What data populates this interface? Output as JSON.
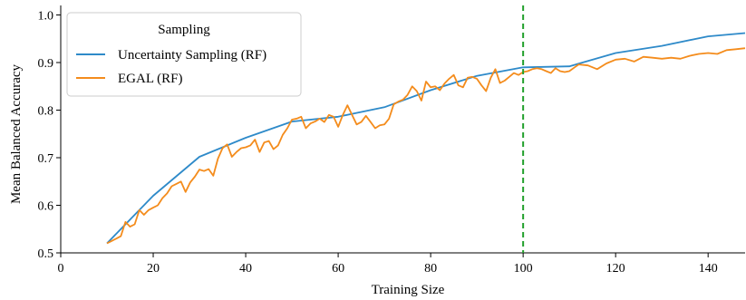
{
  "chart_data": {
    "type": "line",
    "xlabel": "Training Size",
    "ylabel": "Mean Balanced Accuracy",
    "xlim": [
      0,
      148
    ],
    "ylim": [
      0.5,
      1.02
    ],
    "xticks": [
      0,
      20,
      40,
      60,
      80,
      100,
      120,
      140
    ],
    "yticks": [
      0.5,
      0.6,
      0.7,
      0.8,
      0.9,
      1.0
    ],
    "xtick_labels": [
      "0",
      "20",
      "40",
      "60",
      "80",
      "100",
      "120",
      "140"
    ],
    "ytick_labels": [
      "0.5",
      "0.6",
      "0.7",
      "0.8",
      "0.9",
      "1.0"
    ],
    "grid": false,
    "legend": {
      "title": "Sampling",
      "placement": "top-left"
    },
    "vline": {
      "x": 100,
      "color": "#22a02c",
      "style": "dashed"
    },
    "series": [
      {
        "name": "Uncertainty Sampling (RF)",
        "color": "#2e8ac9",
        "x": [
          10,
          20,
          30,
          40,
          50,
          60,
          70,
          80,
          90,
          100,
          110,
          120,
          130,
          140,
          148
        ],
        "y": [
          0.52,
          0.62,
          0.702,
          0.742,
          0.776,
          0.786,
          0.806,
          0.842,
          0.872,
          0.89,
          0.892,
          0.92,
          0.935,
          0.955,
          0.962
        ]
      },
      {
        "name": "EGAL (RF)",
        "color": "#f48c1c",
        "x": [
          10,
          11,
          12,
          13,
          14,
          15,
          16,
          17,
          18,
          19,
          20,
          21,
          22,
          23,
          24,
          25,
          26,
          27,
          28,
          29,
          30,
          31,
          32,
          33,
          34,
          35,
          36,
          37,
          38,
          39,
          40,
          41,
          42,
          43,
          44,
          45,
          46,
          47,
          48,
          49,
          50,
          51,
          52,
          53,
          54,
          55,
          56,
          57,
          58,
          59,
          60,
          61,
          62,
          63,
          64,
          65,
          66,
          67,
          68,
          69,
          70,
          71,
          72,
          73,
          74,
          75,
          76,
          77,
          78,
          79,
          80,
          81,
          82,
          83,
          84,
          85,
          86,
          87,
          88,
          89,
          90,
          91,
          92,
          93,
          94,
          95,
          96,
          97,
          98,
          99,
          100,
          101,
          102,
          103,
          104,
          105,
          106,
          107,
          108,
          109,
          110,
          112,
          114,
          116,
          118,
          120,
          122,
          124,
          126,
          128,
          130,
          132,
          134,
          136,
          138,
          140,
          142,
          144,
          146,
          148
        ],
        "y": [
          0.52,
          0.525,
          0.53,
          0.535,
          0.565,
          0.555,
          0.56,
          0.59,
          0.58,
          0.59,
          0.595,
          0.6,
          0.615,
          0.625,
          0.64,
          0.645,
          0.65,
          0.628,
          0.648,
          0.66,
          0.675,
          0.672,
          0.676,
          0.662,
          0.698,
          0.72,
          0.728,
          0.702,
          0.712,
          0.72,
          0.722,
          0.726,
          0.738,
          0.712,
          0.732,
          0.735,
          0.718,
          0.726,
          0.748,
          0.762,
          0.78,
          0.782,
          0.786,
          0.762,
          0.772,
          0.776,
          0.782,
          0.775,
          0.79,
          0.786,
          0.765,
          0.79,
          0.81,
          0.79,
          0.77,
          0.775,
          0.788,
          0.775,
          0.762,
          0.768,
          0.77,
          0.782,
          0.812,
          0.818,
          0.822,
          0.832,
          0.85,
          0.84,
          0.82,
          0.86,
          0.848,
          0.85,
          0.842,
          0.856,
          0.866,
          0.874,
          0.852,
          0.848,
          0.868,
          0.87,
          0.866,
          0.852,
          0.84,
          0.868,
          0.886,
          0.857,
          0.862,
          0.87,
          0.878,
          0.874,
          0.88,
          0.882,
          0.886,
          0.888,
          0.886,
          0.882,
          0.878,
          0.888,
          0.882,
          0.88,
          0.882,
          0.896,
          0.894,
          0.886,
          0.898,
          0.906,
          0.908,
          0.902,
          0.912,
          0.91,
          0.908,
          0.91,
          0.908,
          0.914,
          0.918,
          0.92,
          0.918,
          0.926,
          0.928,
          0.93
        ]
      }
    ]
  }
}
